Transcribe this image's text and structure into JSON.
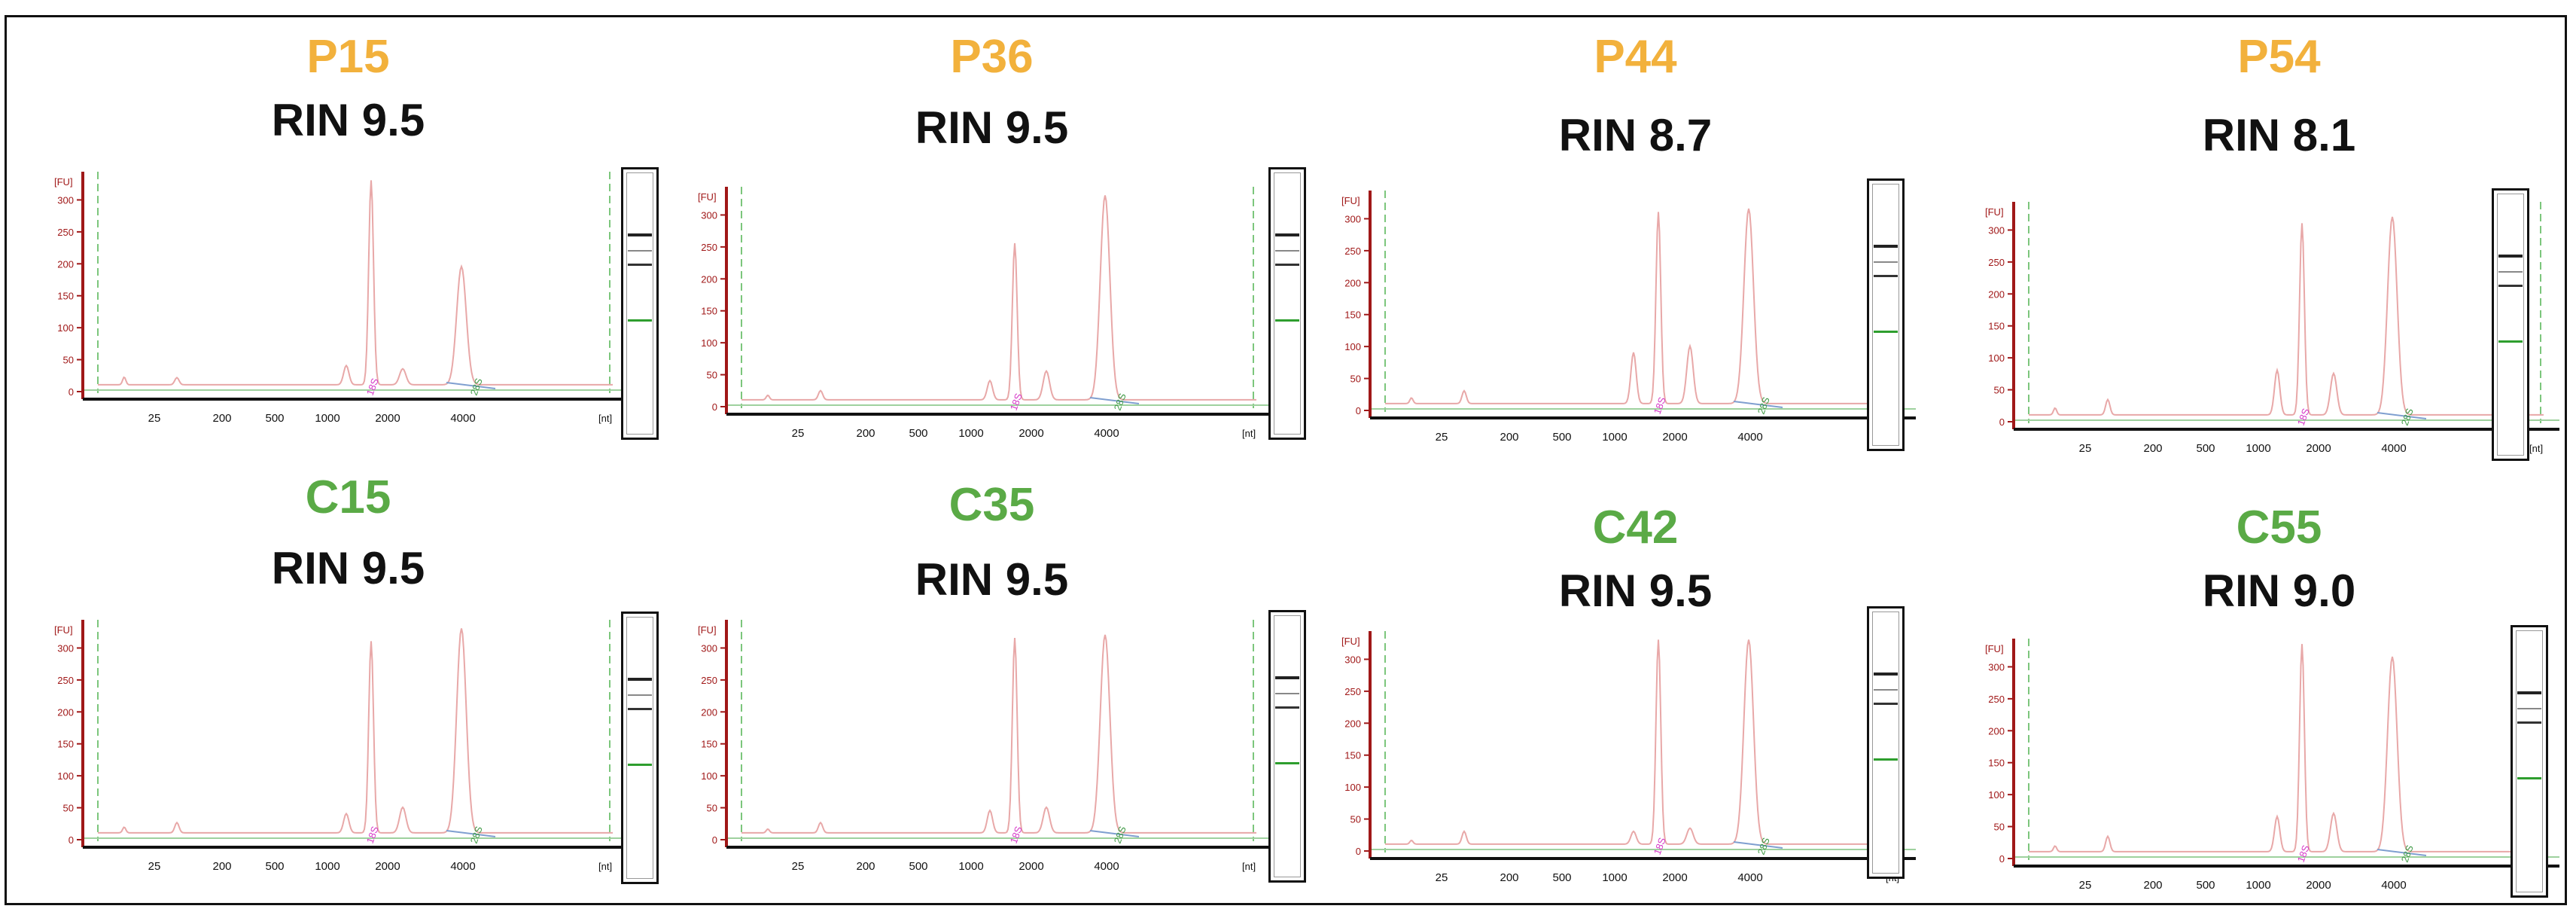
{
  "colors": {
    "passage_label": "#F2B13C",
    "control_label": "#5AAA46",
    "trace": "#E8A8A8",
    "axis": "#A01818",
    "baseline": "#9ED19E",
    "marker_18s": "#D63AC8",
    "marker_28s": "#3F9A45",
    "lower_marker_band": "#2E9E2E"
  },
  "chart_data": [
    {
      "type": "line",
      "sample": "P15",
      "group": "passage",
      "rin_label": "RIN 9.5",
      "fu_label": "[FU]",
      "nt_label": "[nt]",
      "yticks": [
        "300",
        "250",
        "200",
        "150",
        "100",
        "50",
        "0"
      ],
      "xticks": [
        "25",
        "200",
        "500",
        "1000",
        "2000",
        "4000"
      ],
      "peak_labels": [
        "18S",
        "28S"
      ],
      "ylim": [
        0,
        330
      ],
      "peak_18s": 320,
      "peak_28s": 185,
      "minor_peaks": [
        20,
        14,
        30,
        25
      ]
    },
    {
      "type": "line",
      "sample": "P36",
      "group": "passage",
      "rin_label": "RIN 9.5",
      "fu_label": "[FU]",
      "nt_label": "[nt]",
      "yticks": [
        "300",
        "250",
        "200",
        "150",
        "100",
        "50",
        "0"
      ],
      "xticks": [
        "25",
        "200",
        "500",
        "1000",
        "2000",
        "4000"
      ],
      "peak_labels": [
        "18S",
        "28S"
      ],
      "ylim": [
        0,
        330
      ],
      "peak_18s": 245,
      "peak_28s": 320,
      "minor_peaks": [
        12,
        18,
        30,
        45
      ]
    },
    {
      "type": "line",
      "sample": "P44",
      "group": "passage",
      "rin_label": "RIN 8.7",
      "fu_label": "[FU]",
      "nt_label": "[nt]",
      "yticks": [
        "300",
        "250",
        "200",
        "150",
        "100",
        "50",
        "0"
      ],
      "xticks": [
        "25",
        "200",
        "500",
        "1000",
        "2000",
        "4000"
      ],
      "peak_labels": [
        "18S",
        "28S"
      ],
      "ylim": [
        0,
        330
      ],
      "peak_18s": 300,
      "peak_28s": 305,
      "minor_peaks": [
        15,
        25,
        80,
        90
      ]
    },
    {
      "type": "line",
      "sample": "P54",
      "group": "passage",
      "rin_label": "RIN 8.1",
      "fu_label": "[FU]",
      "nt_label": "[nt]",
      "yticks": [
        "300",
        "250",
        "200",
        "150",
        "100",
        "50",
        "0"
      ],
      "xticks": [
        "25",
        "200",
        "500",
        "1000",
        "2000",
        "4000"
      ],
      "peak_labels": [
        "18S",
        "28S"
      ],
      "ylim": [
        0,
        330
      ],
      "peak_18s": 300,
      "peak_28s": 310,
      "minor_peaks": [
        18,
        30,
        70,
        65
      ]
    },
    {
      "type": "line",
      "sample": "C15",
      "group": "control",
      "rin_label": "RIN 9.5",
      "fu_label": "[FU]",
      "nt_label": "[nt]",
      "yticks": [
        "300",
        "250",
        "200",
        "150",
        "100",
        "50",
        "0"
      ],
      "xticks": [
        "25",
        "200",
        "500",
        "1000",
        "2000",
        "4000"
      ],
      "peak_labels": [
        "18S",
        "28S"
      ],
      "ylim": [
        0,
        330
      ],
      "peak_18s": 300,
      "peak_28s": 320,
      "minor_peaks": [
        15,
        20,
        30,
        40
      ]
    },
    {
      "type": "line",
      "sample": "C35",
      "group": "control",
      "rin_label": "RIN 9.5",
      "fu_label": "[FU]",
      "nt_label": "[nt]",
      "yticks": [
        "300",
        "250",
        "200",
        "150",
        "100",
        "50",
        "0"
      ],
      "xticks": [
        "25",
        "200",
        "500",
        "1000",
        "2000",
        "4000"
      ],
      "peak_labels": [
        "18S",
        "28S"
      ],
      "ylim": [
        0,
        330
      ],
      "peak_18s": 305,
      "peak_28s": 310,
      "minor_peaks": [
        10,
        20,
        35,
        40
      ]
    },
    {
      "type": "line",
      "sample": "C42",
      "group": "control",
      "rin_label": "RIN 9.5",
      "fu_label": "[FU]",
      "nt_label": "[nt]",
      "yticks": [
        "300",
        "250",
        "200",
        "150",
        "100",
        "50",
        "0"
      ],
      "xticks": [
        "25",
        "200",
        "500",
        "1000",
        "2000",
        "4000"
      ],
      "peak_labels": [
        "18S",
        "28S"
      ],
      "ylim": [
        0,
        330
      ],
      "peak_18s": 320,
      "peak_28s": 320,
      "minor_peaks": [
        10,
        25,
        20,
        25
      ]
    },
    {
      "type": "line",
      "sample": "C55",
      "group": "control",
      "rin_label": "RIN 9.0",
      "fu_label": "[FU]",
      "nt_label": "[nt]",
      "yticks": [
        "300",
        "250",
        "200",
        "150",
        "100",
        "50",
        "0"
      ],
      "xticks": [
        "25",
        "200",
        "500",
        "1000",
        "2000",
        "4000"
      ],
      "peak_labels": [
        "18S",
        "28S"
      ],
      "ylim": [
        0,
        330
      ],
      "peak_18s": 325,
      "peak_28s": 305,
      "minor_peaks": [
        15,
        30,
        55,
        60
      ]
    }
  ]
}
